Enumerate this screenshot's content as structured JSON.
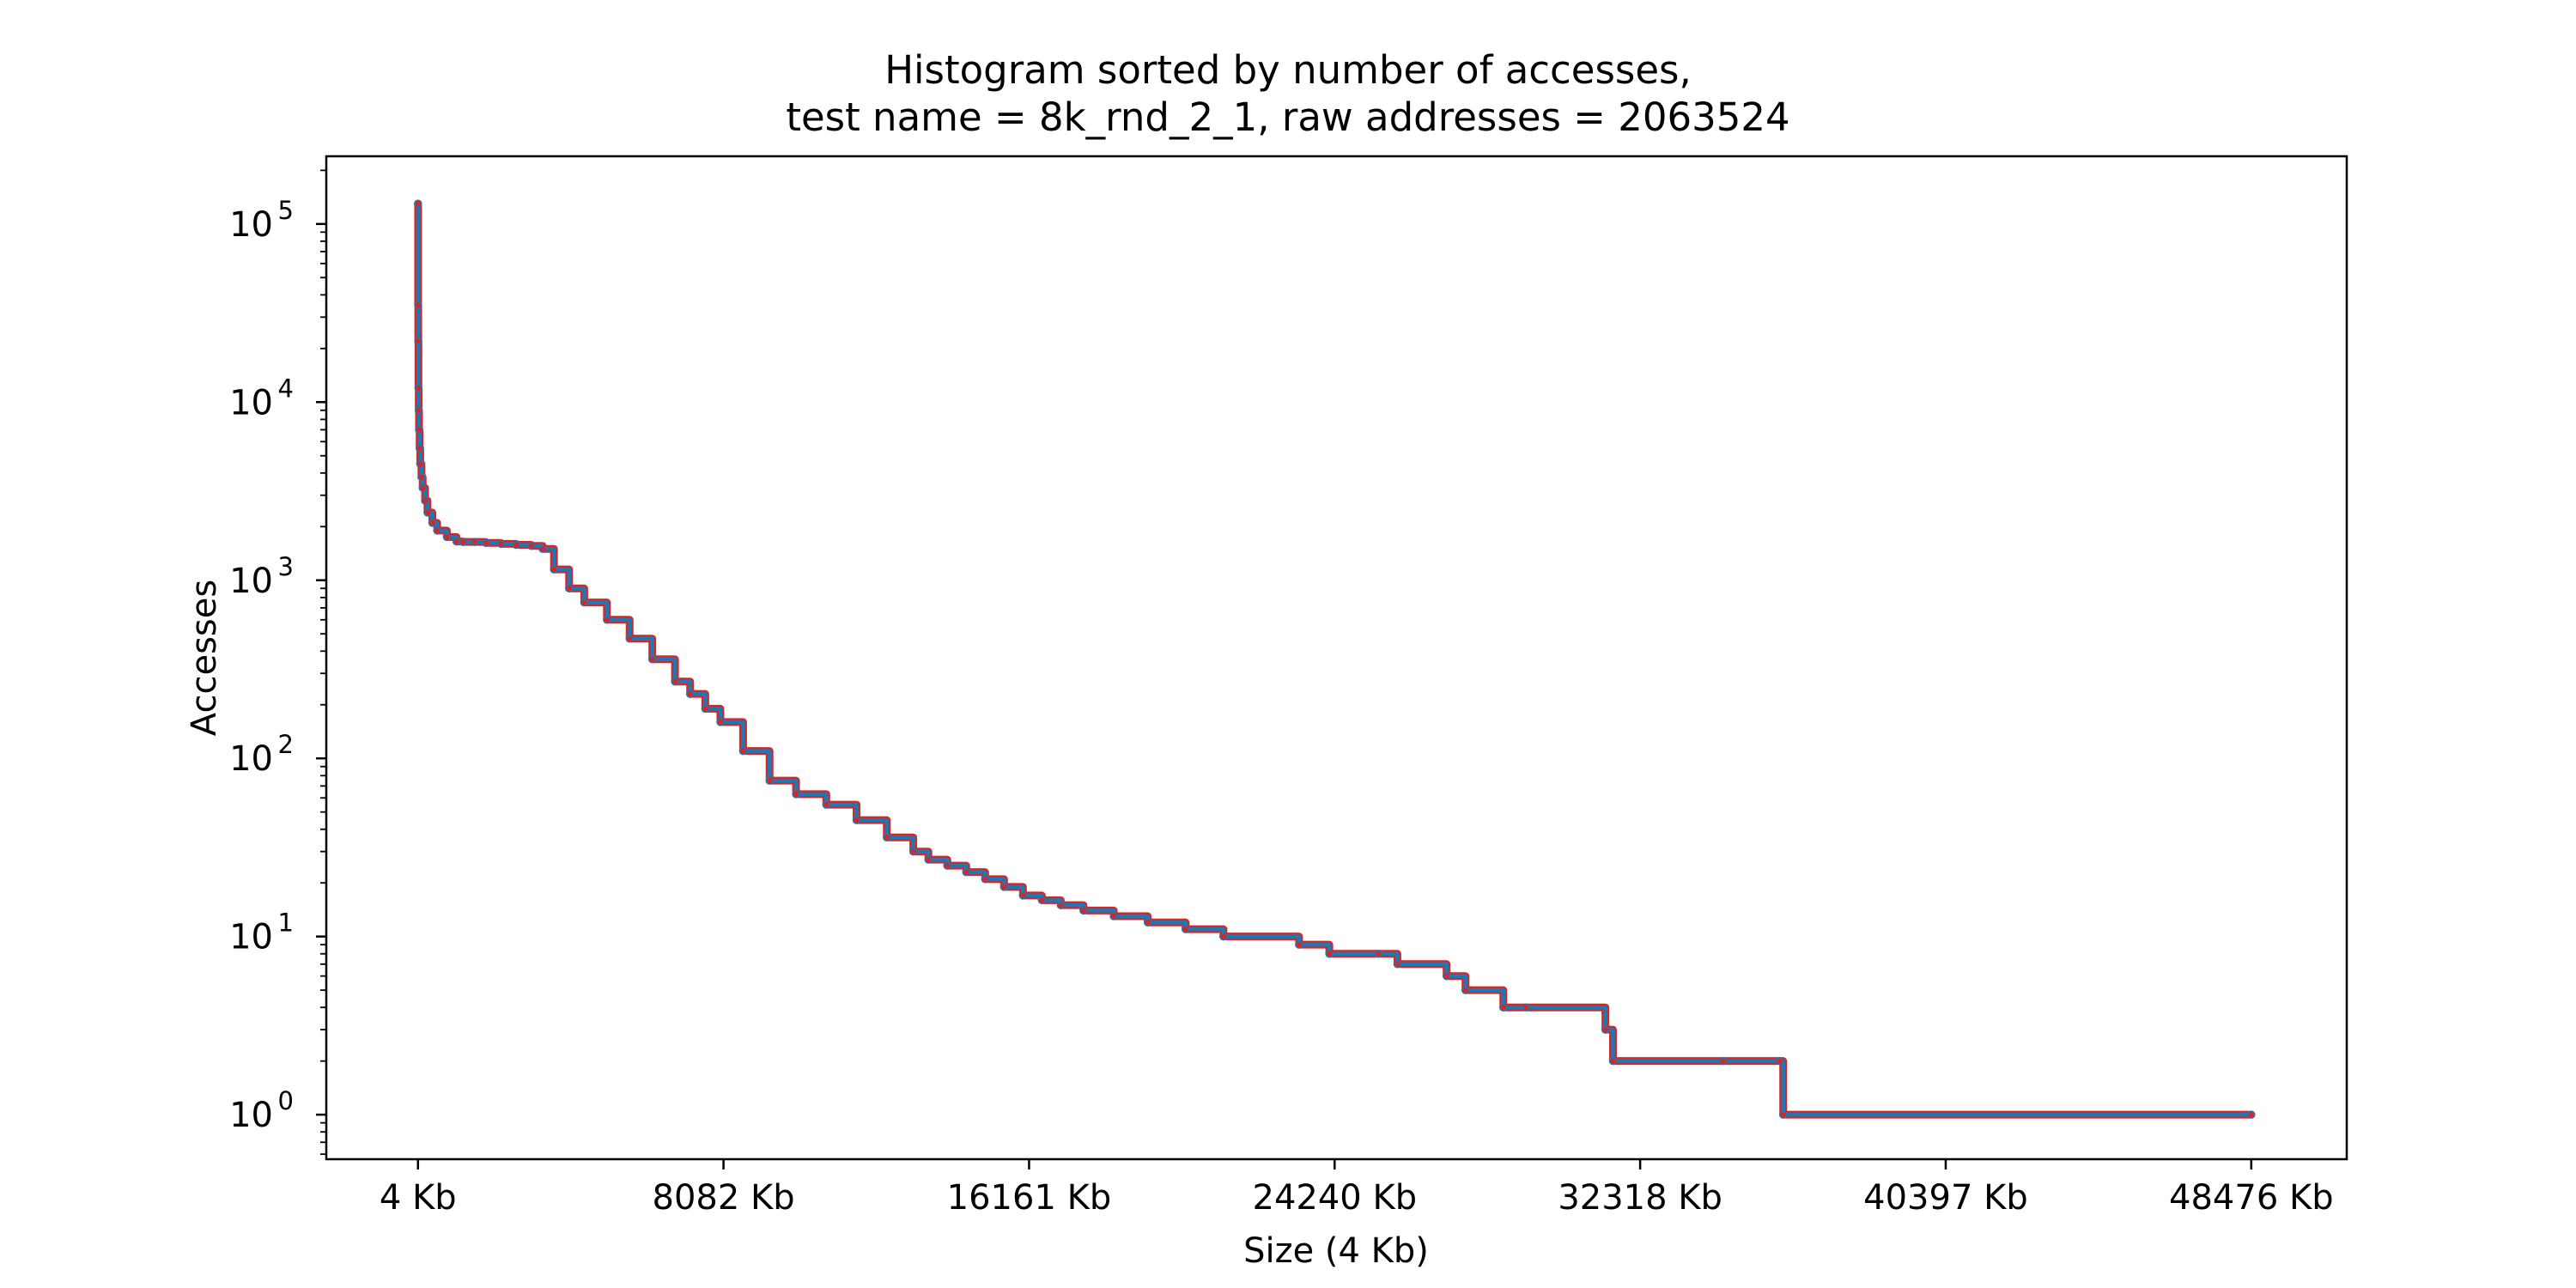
{
  "chart_data": {
    "type": "line",
    "title_line1": "Histogram sorted by number of accesses,",
    "title_line2": "test name = 8k_rnd_2_1, raw addresses = 2063524",
    "xlabel": "Size (4 Kb)",
    "ylabel": "Accesses",
    "xlim": [
      -2420,
      51000
    ],
    "ylim_log10": [
      -0.25,
      5.38
    ],
    "yscale": "log",
    "grid": false,
    "legend": "none",
    "x_ticks": [
      {
        "value": 4,
        "label": "4 Kb"
      },
      {
        "value": 8082,
        "label": "8082 Kb"
      },
      {
        "value": 16161,
        "label": "16161 Kb"
      },
      {
        "value": 24240,
        "label": "24240 Kb"
      },
      {
        "value": 32318,
        "label": "32318 Kb"
      },
      {
        "value": 40397,
        "label": "40397 Kb"
      },
      {
        "value": 48476,
        "label": "48476 Kb"
      }
    ],
    "y_ticks": [
      {
        "value": 1,
        "base": "10",
        "exp": "0"
      },
      {
        "value": 10,
        "base": "10",
        "exp": "1"
      },
      {
        "value": 100,
        "base": "10",
        "exp": "2"
      },
      {
        "value": 1000,
        "base": "10",
        "exp": "3"
      },
      {
        "value": 10000,
        "base": "10",
        "exp": "4"
      },
      {
        "value": 100000,
        "base": "10",
        "exp": "5"
      }
    ],
    "series": [
      {
        "color": "#1f77b4",
        "marker_color": "#d62728",
        "x": [
          4,
          8,
          12,
          16,
          24,
          32,
          48,
          64,
          96,
          128,
          192,
          256,
          384,
          512,
          768,
          1024,
          1200,
          1500,
          1800,
          2200,
          2600,
          3000,
          3300,
          3600,
          4000,
          4400,
          5000,
          5600,
          6200,
          6800,
          7200,
          7600,
          8000,
          8600,
          9300,
          10000,
          10800,
          11600,
          12400,
          13100,
          13500,
          14000,
          14500,
          15000,
          15500,
          16000,
          16500,
          17000,
          17600,
          18400,
          19300,
          20300,
          21300,
          23300,
          24100,
          25400,
          25900,
          27200,
          27700,
          28700,
          29300,
          31400,
          31600,
          34500,
          36000,
          36100,
          48476
        ],
        "y": [
          130000,
          35000,
          22000,
          12000,
          9000,
          7000,
          5500,
          4500,
          3800,
          3300,
          2800,
          2400,
          2100,
          1900,
          1750,
          1650,
          1640,
          1640,
          1620,
          1600,
          1580,
          1560,
          1500,
          1150,
          900,
          750,
          600,
          470,
          360,
          270,
          230,
          190,
          160,
          110,
          75,
          63,
          55,
          45,
          36,
          30,
          27,
          25,
          23,
          21,
          19,
          17,
          16,
          15,
          14,
          13,
          12,
          11,
          10,
          9,
          8,
          8,
          7,
          6,
          5,
          4,
          4,
          3,
          2,
          2,
          2,
          1,
          1
        ]
      }
    ]
  }
}
